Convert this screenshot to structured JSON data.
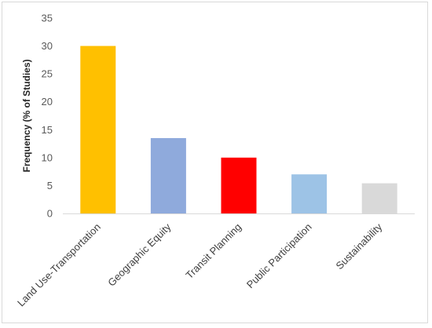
{
  "chart_data": {
    "type": "bar",
    "title": "",
    "xlabel": "",
    "ylabel": "Frequency (% of Studies)",
    "ylim": [
      0,
      35
    ],
    "yticks": [
      0,
      5,
      10,
      15,
      20,
      25,
      30,
      35
    ],
    "grid": false,
    "legend": "none",
    "categories": [
      "Land Use-Transportation",
      "Geographic Equity",
      "Transit Planning",
      "Public Participation",
      "Sustainability"
    ],
    "values": [
      30,
      13.5,
      10,
      7,
      5.4
    ],
    "colors": [
      "#FFC000",
      "#8FAADC",
      "#FF0000",
      "#9DC3E6",
      "#D9D9D9"
    ]
  }
}
